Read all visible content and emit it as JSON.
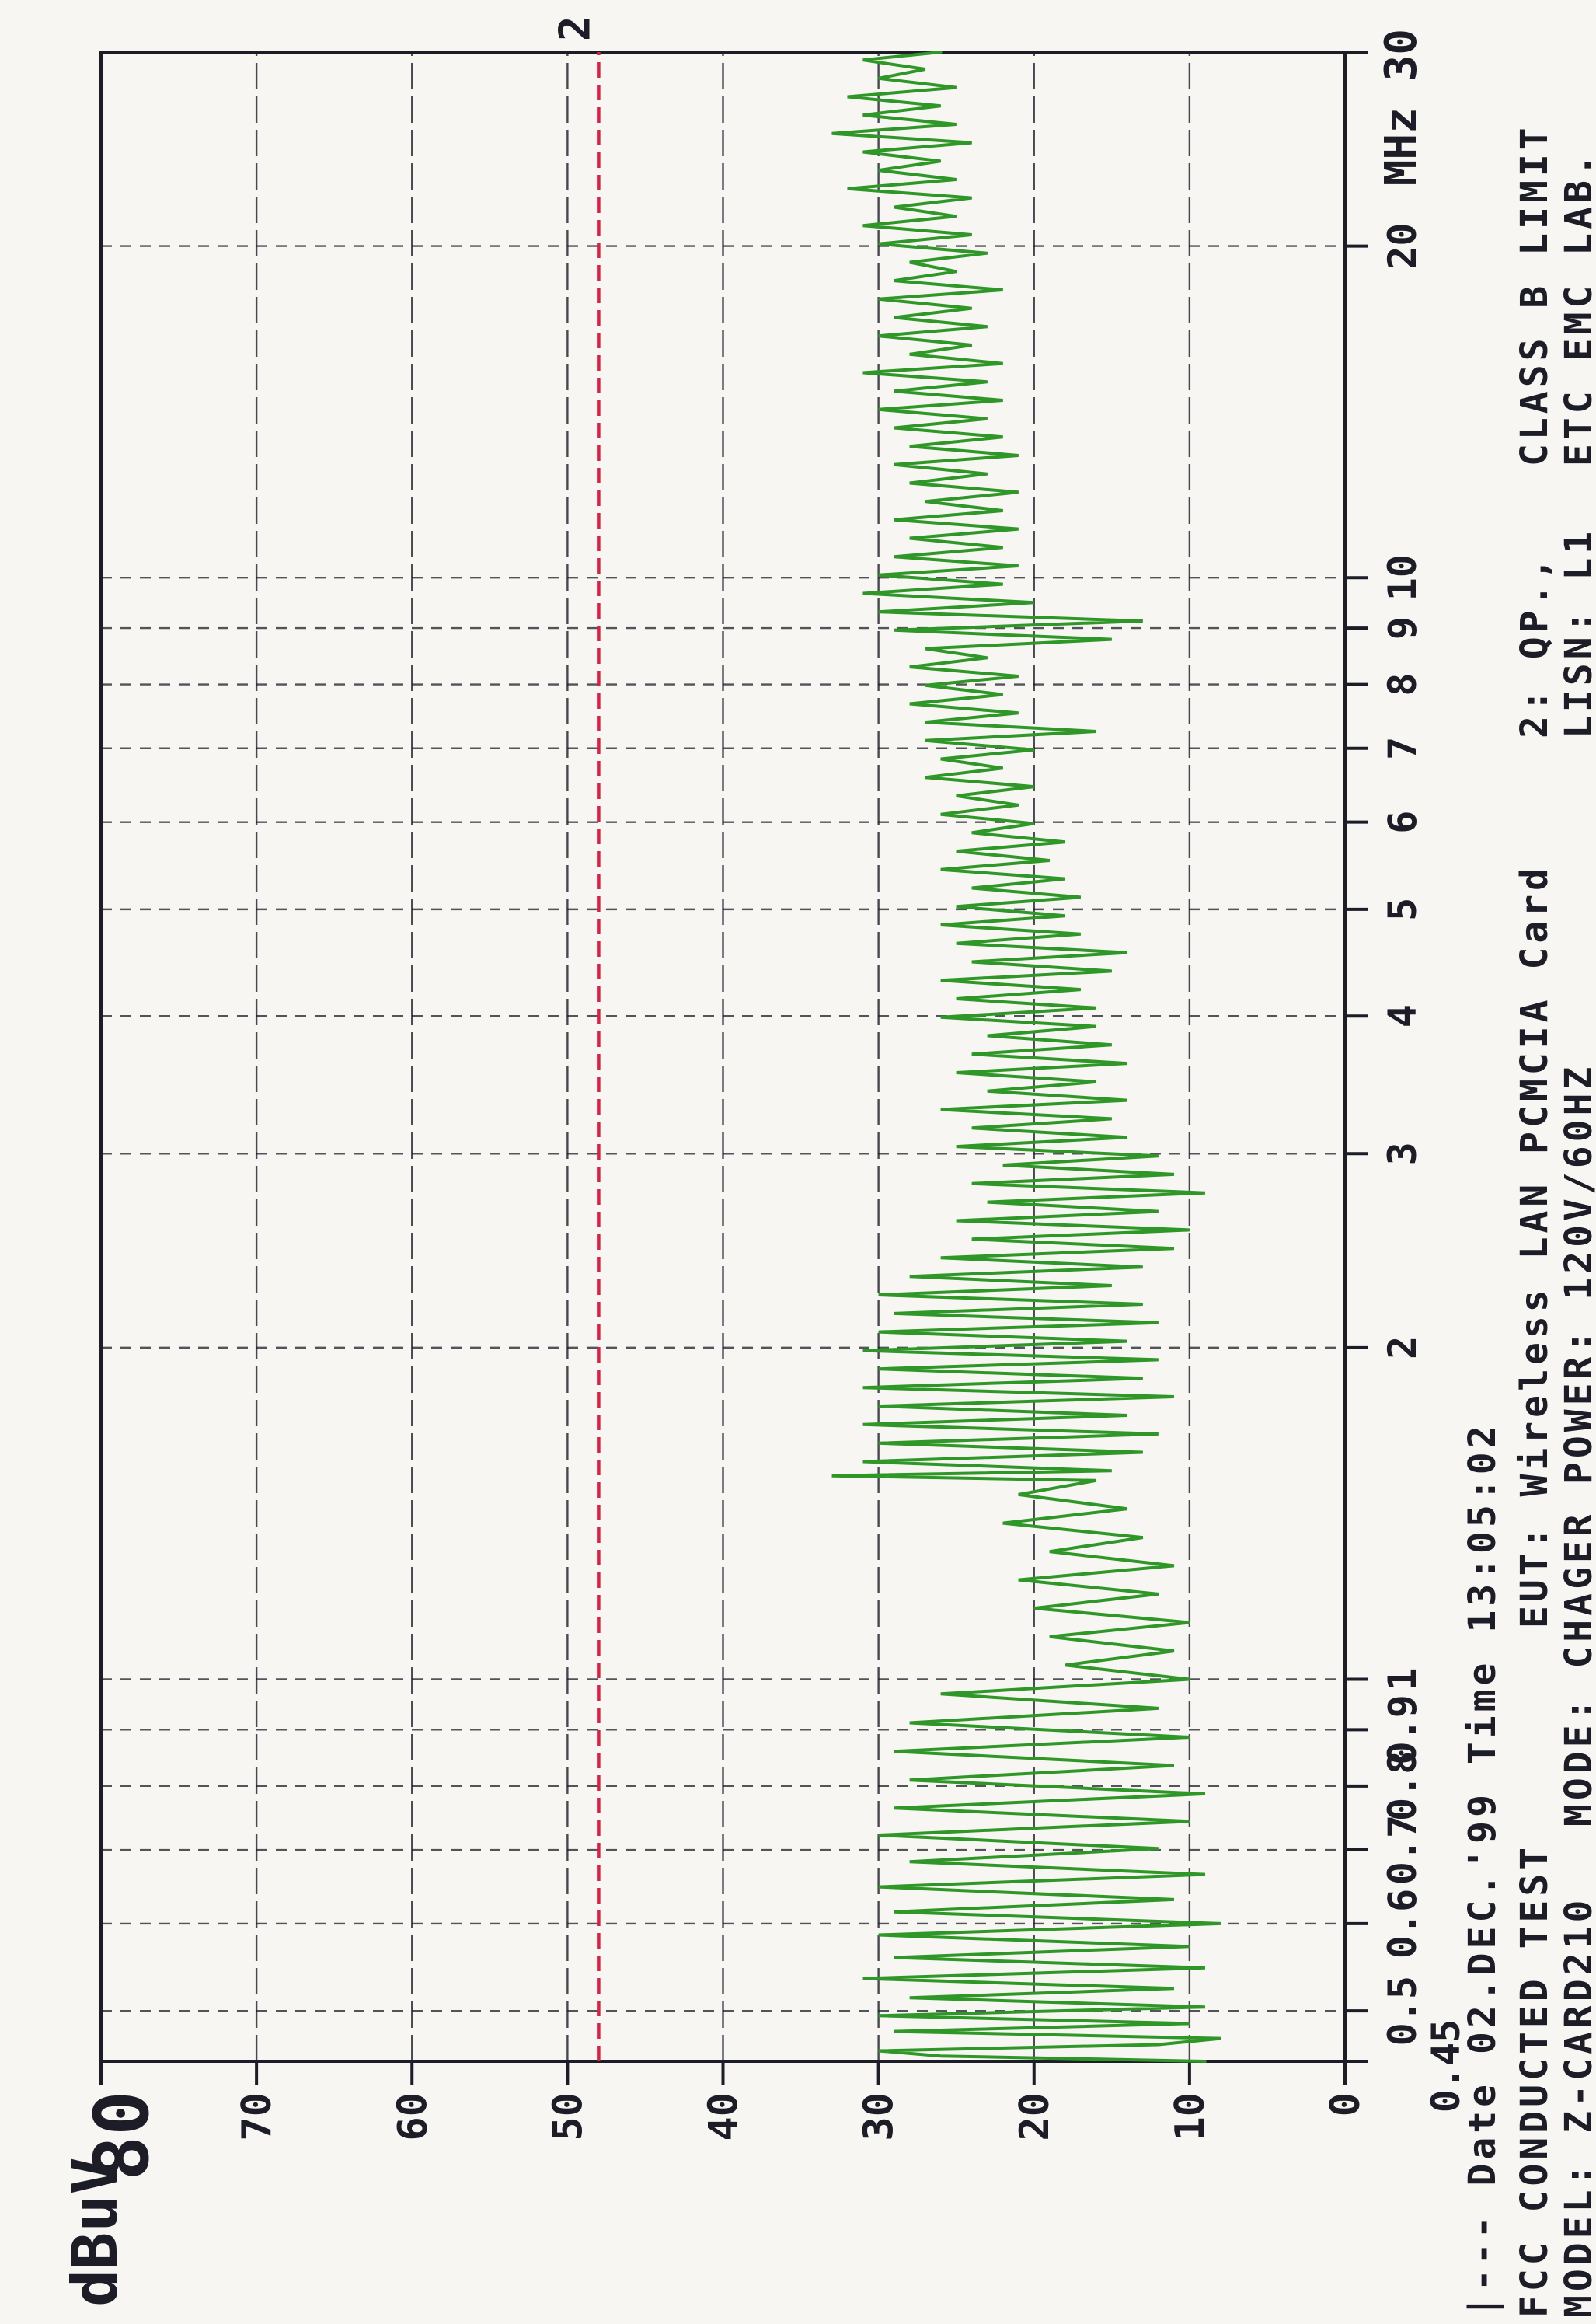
{
  "page": {
    "paper_color": "#f7f6f2",
    "ink_color": "#1d1d28"
  },
  "chart_data": {
    "type": "line",
    "orientation": "rotated-90-ccw-on-page",
    "grid": "on",
    "x_axis": {
      "scale": "log",
      "min": 0.45,
      "max": 30,
      "ticks": [
        0.45,
        0.5,
        0.6,
        0.7,
        0.8,
        0.9,
        1,
        2,
        3,
        4,
        5,
        6,
        7,
        8,
        9,
        10,
        20,
        30
      ],
      "tick_labels": [
        "0.45",
        "0.5",
        "0.6",
        "0.7",
        "0.8",
        "0.9",
        "1",
        "2",
        "3",
        "4",
        "5",
        "6",
        "7",
        "8",
        "9",
        "10",
        "20",
        "MHz 30"
      ]
    },
    "y_axis": {
      "unit": "dBuV",
      "min": 0,
      "max": 80,
      "ticks": [
        80,
        70,
        60,
        50,
        40,
        30,
        20,
        10,
        0
      ]
    },
    "limit_line": {
      "value": 48,
      "label": "2",
      "color": "#d92045",
      "style": "dashed"
    },
    "series": [
      {
        "id": "emission-trace",
        "color": "#2f9727",
        "points": [
          [
            0.45,
            9
          ],
          [
            0.455,
            26
          ],
          [
            0.46,
            30
          ],
          [
            0.466,
            12
          ],
          [
            0.472,
            8
          ],
          [
            0.479,
            29
          ],
          [
            0.487,
            10
          ],
          [
            0.495,
            30
          ],
          [
            0.504,
            9
          ],
          [
            0.514,
            28
          ],
          [
            0.524,
            11
          ],
          [
            0.535,
            31
          ],
          [
            0.547,
            9
          ],
          [
            0.559,
            29
          ],
          [
            0.572,
            10
          ],
          [
            0.586,
            30
          ],
          [
            0.6,
            8
          ],
          [
            0.615,
            29
          ],
          [
            0.631,
            11
          ],
          [
            0.648,
            30
          ],
          [
            0.665,
            9
          ],
          [
            0.683,
            28
          ],
          [
            0.702,
            12
          ],
          [
            0.722,
            30
          ],
          [
            0.743,
            10
          ],
          [
            0.764,
            29
          ],
          [
            0.787,
            9
          ],
          [
            0.81,
            28
          ],
          [
            0.835,
            11
          ],
          [
            0.86,
            29
          ],
          [
            0.886,
            10
          ],
          [
            0.913,
            28
          ],
          [
            0.941,
            12
          ],
          [
            0.97,
            26
          ],
          [
            1.0,
            10
          ],
          [
            1.03,
            18
          ],
          [
            1.061,
            11
          ],
          [
            1.093,
            19
          ],
          [
            1.126,
            10
          ],
          [
            1.16,
            20
          ],
          [
            1.195,
            12
          ],
          [
            1.231,
            21
          ],
          [
            1.268,
            11
          ],
          [
            1.306,
            19
          ],
          [
            1.345,
            13
          ],
          [
            1.386,
            22
          ],
          [
            1.428,
            14
          ],
          [
            1.471,
            21
          ],
          [
            1.515,
            16
          ],
          [
            1.53,
            33
          ],
          [
            1.546,
            15
          ],
          [
            1.576,
            31
          ],
          [
            1.607,
            13
          ],
          [
            1.638,
            30
          ],
          [
            1.67,
            12
          ],
          [
            1.703,
            31
          ],
          [
            1.736,
            14
          ],
          [
            1.77,
            30
          ],
          [
            1.805,
            11
          ],
          [
            1.84,
            31
          ],
          [
            1.876,
            13
          ],
          [
            1.913,
            30
          ],
          [
            1.95,
            12
          ],
          [
            1.988,
            31
          ],
          [
            2.027,
            14
          ],
          [
            2.067,
            30
          ],
          [
            2.107,
            12
          ],
          [
            2.148,
            29
          ],
          [
            2.19,
            13
          ],
          [
            2.233,
            30
          ],
          [
            2.277,
            15
          ],
          [
            2.321,
            28
          ],
          [
            2.367,
            13
          ],
          [
            2.413,
            26
          ],
          [
            2.461,
            11
          ],
          [
            2.509,
            24
          ],
          [
            2.558,
            10
          ],
          [
            2.608,
            25
          ],
          [
            2.659,
            12
          ],
          [
            2.711,
            23
          ],
          [
            2.764,
            9
          ],
          [
            2.818,
            24
          ],
          [
            2.873,
            11
          ],
          [
            2.929,
            22
          ],
          [
            2.986,
            12
          ],
          [
            3.045,
            25
          ],
          [
            3.104,
            14
          ],
          [
            3.165,
            24
          ],
          [
            3.227,
            15
          ],
          [
            3.29,
            26
          ],
          [
            3.354,
            14
          ],
          [
            3.419,
            23
          ],
          [
            3.486,
            16
          ],
          [
            3.554,
            25
          ],
          [
            3.623,
            14
          ],
          [
            3.694,
            24
          ],
          [
            3.766,
            15
          ],
          [
            3.839,
            23
          ],
          [
            3.914,
            16
          ],
          [
            3.99,
            26
          ],
          [
            4.068,
            16
          ],
          [
            4.147,
            25
          ],
          [
            4.228,
            17
          ],
          [
            4.31,
            26
          ],
          [
            4.394,
            15
          ],
          [
            4.48,
            24
          ],
          [
            4.567,
            14
          ],
          [
            4.656,
            25
          ],
          [
            4.747,
            17
          ],
          [
            4.839,
            26
          ],
          [
            4.933,
            18
          ],
          [
            5.029,
            25
          ],
          [
            5.127,
            17
          ],
          [
            5.227,
            24
          ],
          [
            5.329,
            18
          ],
          [
            5.433,
            26
          ],
          [
            5.538,
            19
          ],
          [
            5.646,
            25
          ],
          [
            5.756,
            18
          ],
          [
            5.868,
            24
          ],
          [
            5.982,
            20
          ],
          [
            6.098,
            26
          ],
          [
            6.217,
            21
          ],
          [
            6.338,
            25
          ],
          [
            6.461,
            20
          ],
          [
            6.587,
            27
          ],
          [
            6.715,
            22
          ],
          [
            6.845,
            26
          ],
          [
            6.978,
            20
          ],
          [
            7.114,
            27
          ],
          [
            7.252,
            16
          ],
          [
            7.393,
            27
          ],
          [
            7.537,
            21
          ],
          [
            7.683,
            28
          ],
          [
            7.832,
            22
          ],
          [
            7.984,
            27
          ],
          [
            8.139,
            21
          ],
          [
            8.297,
            28
          ],
          [
            8.458,
            23
          ],
          [
            8.622,
            27
          ],
          [
            8.79,
            15
          ],
          [
            8.96,
            29
          ],
          [
            9.134,
            13
          ],
          [
            9.311,
            30
          ],
          [
            9.492,
            20
          ],
          [
            9.676,
            31
          ],
          [
            9.864,
            22
          ],
          [
            10.055,
            30
          ],
          [
            10.25,
            21
          ],
          [
            10.449,
            29
          ],
          [
            10.652,
            22
          ],
          [
            10.859,
            28
          ],
          [
            11.07,
            21
          ],
          [
            11.285,
            29
          ],
          [
            11.504,
            22
          ],
          [
            11.727,
            27
          ],
          [
            11.955,
            21
          ],
          [
            12.187,
            28
          ],
          [
            12.423,
            23
          ],
          [
            12.664,
            29
          ],
          [
            12.91,
            21
          ],
          [
            13.161,
            28
          ],
          [
            13.416,
            22
          ],
          [
            13.677,
            29
          ],
          [
            13.942,
            23
          ],
          [
            14.213,
            30
          ],
          [
            14.489,
            22
          ],
          [
            14.77,
            29
          ],
          [
            15.057,
            23
          ],
          [
            15.349,
            31
          ],
          [
            15.647,
            22
          ],
          [
            15.951,
            28
          ],
          [
            16.26,
            24
          ],
          [
            16.576,
            30
          ],
          [
            16.898,
            23
          ],
          [
            17.226,
            29
          ],
          [
            17.56,
            24
          ],
          [
            17.901,
            30
          ],
          [
            18.248,
            22
          ],
          [
            18.603,
            29
          ],
          [
            18.964,
            25
          ],
          [
            19.332,
            28
          ],
          [
            19.707,
            23
          ],
          [
            20.09,
            30
          ],
          [
            20.48,
            24
          ],
          [
            20.877,
            31
          ],
          [
            21.283,
            25
          ],
          [
            21.696,
            29
          ],
          [
            22.117,
            24
          ],
          [
            22.546,
            32
          ],
          [
            22.984,
            25
          ],
          [
            23.43,
            30
          ],
          [
            23.885,
            26
          ],
          [
            24.348,
            31
          ],
          [
            24.821,
            24
          ],
          [
            25.303,
            33
          ],
          [
            25.794,
            25
          ],
          [
            26.295,
            31
          ],
          [
            26.805,
            26
          ],
          [
            27.325,
            32
          ],
          [
            27.856,
            25
          ],
          [
            28.396,
            30
          ],
          [
            28.947,
            27
          ],
          [
            29.509,
            31
          ],
          [
            30.0,
            26
          ]
        ]
      }
    ]
  },
  "annotations": {
    "lines": [
      {
        "y": 1924,
        "segments": [
          {
            "x": 8,
            "text": "|--- Date 02.DEC.'99 Time 13:05:02"
          }
        ]
      },
      {
        "y": 1991,
        "segments": [
          {
            "x": 8,
            "text": "FCC CONDUCTED TEST"
          },
          {
            "x": 895,
            "text": "EUT: Wireless LAN PCMCIA Card"
          },
          {
            "x": 2040,
            "text": "2: QP.,"
          },
          {
            "x": 2390,
            "text": "CLASS B LIMIT"
          }
        ]
      },
      {
        "y": 2048,
        "segments": [
          {
            "x": 8,
            "text": "MODEL: Z-CARD210"
          },
          {
            "x": 640,
            "text": "MODE: CHAGER"
          },
          {
            "x": 1080,
            "text": "POWER: 120V/60HZ"
          },
          {
            "x": 2040,
            "text": "LISN: L1"
          },
          {
            "x": 2390,
            "text": "ETC EMC LAB."
          }
        ]
      }
    ]
  }
}
